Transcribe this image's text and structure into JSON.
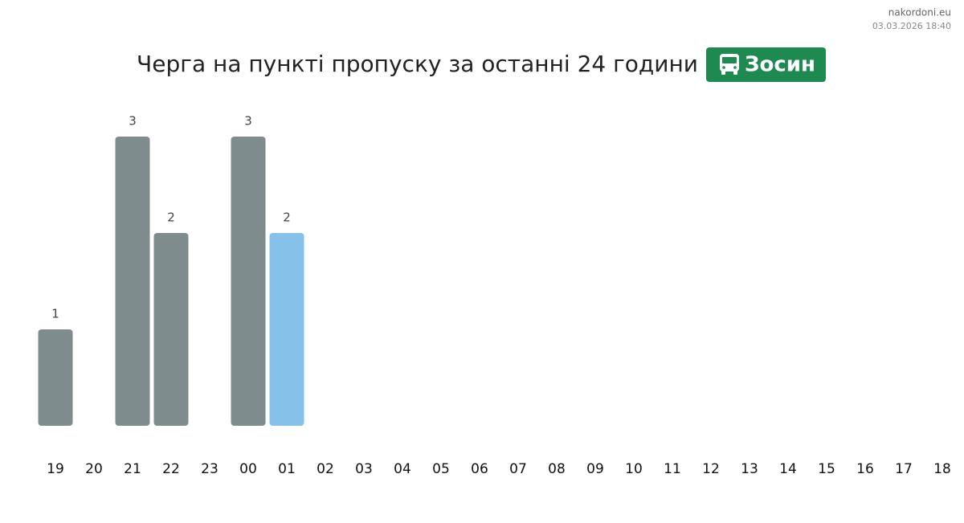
{
  "site": "nakordoni.eu",
  "timestamp": "03.03.2026 18:40",
  "chart_data": {
    "type": "bar",
    "title": "Черга на пункті пропуску за останні 24 години",
    "badge": "Зосин",
    "categories": [
      "19",
      "20",
      "21",
      "22",
      "23",
      "00",
      "01",
      "02",
      "03",
      "04",
      "05",
      "06",
      "07",
      "08",
      "09",
      "10",
      "11",
      "12",
      "13",
      "14",
      "15",
      "16",
      "17",
      "18"
    ],
    "values": [
      1,
      null,
      3,
      2,
      null,
      3,
      2,
      null,
      null,
      null,
      null,
      null,
      null,
      null,
      null,
      null,
      null,
      null,
      null,
      null,
      null,
      null,
      null,
      null
    ],
    "colors": [
      "#7f8c8d",
      "#7f8c8d",
      "#7f8c8d",
      "#7f8c8d",
      "#7f8c8d",
      "#7f8c8d",
      "#85c1e9",
      "#7f8c8d",
      "#7f8c8d",
      "#7f8c8d",
      "#7f8c8d",
      "#7f8c8d",
      "#7f8c8d",
      "#7f8c8d",
      "#7f8c8d",
      "#7f8c8d",
      "#7f8c8d",
      "#7f8c8d",
      "#7f8c8d",
      "#7f8c8d",
      "#7f8c8d",
      "#7f8c8d",
      "#7f8c8d",
      "#7f8c8d"
    ],
    "badge_color": "#1e8a52"
  }
}
